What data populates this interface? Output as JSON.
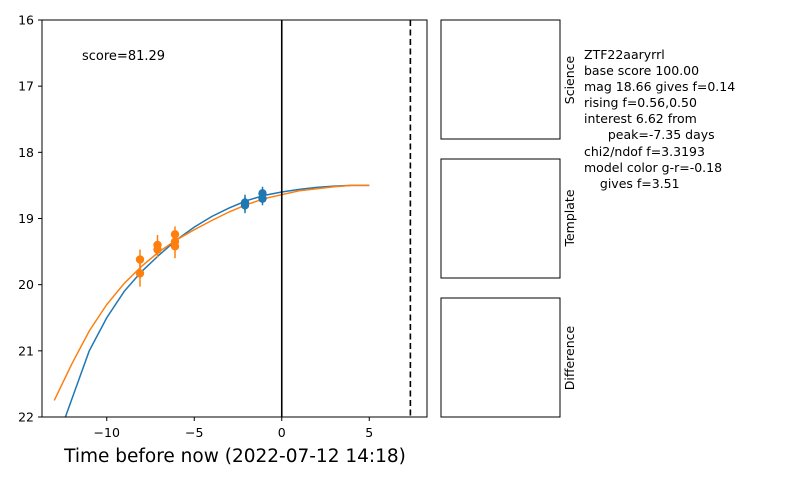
{
  "chart_data": {
    "type": "scatter",
    "title": "",
    "xlabel": "Time before now (2022-07-12 14:18)",
    "ylabel": "",
    "xlim": [
      -13.7,
      8.3
    ],
    "ylim": [
      22,
      16
    ],
    "y_inverted": true,
    "x_ticks": [
      -10,
      -5,
      0,
      5
    ],
    "x_tick_labels": [
      "−10",
      "−5",
      "0",
      "5"
    ],
    "y_ticks": [
      16,
      17,
      18,
      19,
      20,
      21,
      22
    ],
    "y_tick_labels": [
      "16",
      "17",
      "18",
      "19",
      "20",
      "21",
      "22"
    ],
    "annotation": "score=81.29",
    "vlines": [
      {
        "x": 0,
        "style": "solid",
        "color": "#000000"
      },
      {
        "x": 7.35,
        "style": "dashed",
        "color": "#000000"
      }
    ],
    "series": [
      {
        "kind": "line",
        "color": "#1f77b4",
        "points": [
          [
            -12.5,
            22.1
          ],
          [
            -11,
            21.0
          ],
          [
            -10,
            20.5
          ],
          [
            -9,
            20.1
          ],
          [
            -8,
            19.8
          ],
          [
            -7,
            19.55
          ],
          [
            -6,
            19.32
          ],
          [
            -5,
            19.13
          ],
          [
            -4,
            18.97
          ],
          [
            -3,
            18.84
          ],
          [
            -2,
            18.73
          ],
          [
            -1,
            18.65
          ],
          [
            0,
            18.6
          ],
          [
            1,
            18.56
          ],
          [
            2,
            18.53
          ],
          [
            3,
            18.51
          ],
          [
            4,
            18.5
          ],
          [
            5,
            18.5
          ]
        ]
      },
      {
        "kind": "line",
        "color": "#ff7f0e",
        "points": [
          [
            -13,
            21.75
          ],
          [
            -12,
            21.2
          ],
          [
            -11,
            20.7
          ],
          [
            -10,
            20.3
          ],
          [
            -9,
            19.98
          ],
          [
            -8,
            19.72
          ],
          [
            -7,
            19.5
          ],
          [
            -6,
            19.32
          ],
          [
            -5,
            19.17
          ],
          [
            -4,
            19.03
          ],
          [
            -3,
            18.9
          ],
          [
            -2,
            18.79
          ],
          [
            -1,
            18.7
          ],
          [
            0,
            18.64
          ],
          [
            1,
            18.58
          ],
          [
            2,
            18.55
          ],
          [
            3,
            18.52
          ],
          [
            4,
            18.5
          ],
          [
            5,
            18.5
          ]
        ]
      },
      {
        "kind": "points",
        "color": "#1f77b4",
        "points": [
          {
            "x": -2.1,
            "y": 18.76,
            "err": 0.12
          },
          {
            "x": -2.1,
            "y": 18.8,
            "err": 0.12
          },
          {
            "x": -1.1,
            "y": 18.62,
            "err": 0.1
          },
          {
            "x": -1.1,
            "y": 18.7,
            "err": 0.1
          }
        ]
      },
      {
        "kind": "points",
        "color": "#ff7f0e",
        "points": [
          {
            "x": -8.1,
            "y": 19.62,
            "err": 0.15
          },
          {
            "x": -8.1,
            "y": 19.83,
            "err": 0.2
          },
          {
            "x": -7.1,
            "y": 19.4,
            "err": 0.15
          },
          {
            "x": -7.1,
            "y": 19.47,
            "err": 0.12
          },
          {
            "x": -6.1,
            "y": 19.24,
            "err": 0.12
          },
          {
            "x": -6.1,
            "y": 19.35,
            "err": 0.12
          },
          {
            "x": -6.1,
            "y": 19.42,
            "err": 0.18
          }
        ]
      }
    ]
  },
  "panels": [
    {
      "label": "Science"
    },
    {
      "label": "Template"
    },
    {
      "label": "Difference"
    }
  ],
  "info": {
    "lines": [
      "ZTF22aaryrrl",
      "base score 100.00",
      "mag 18.66 gives f=0.14",
      "rising f=0.56,0.50",
      "interest 6.62 from",
      "      peak=-7.35 days",
      "chi2/ndof f=3.3193",
      "model color g-r=-0.18",
      "    gives f=3.51"
    ]
  }
}
